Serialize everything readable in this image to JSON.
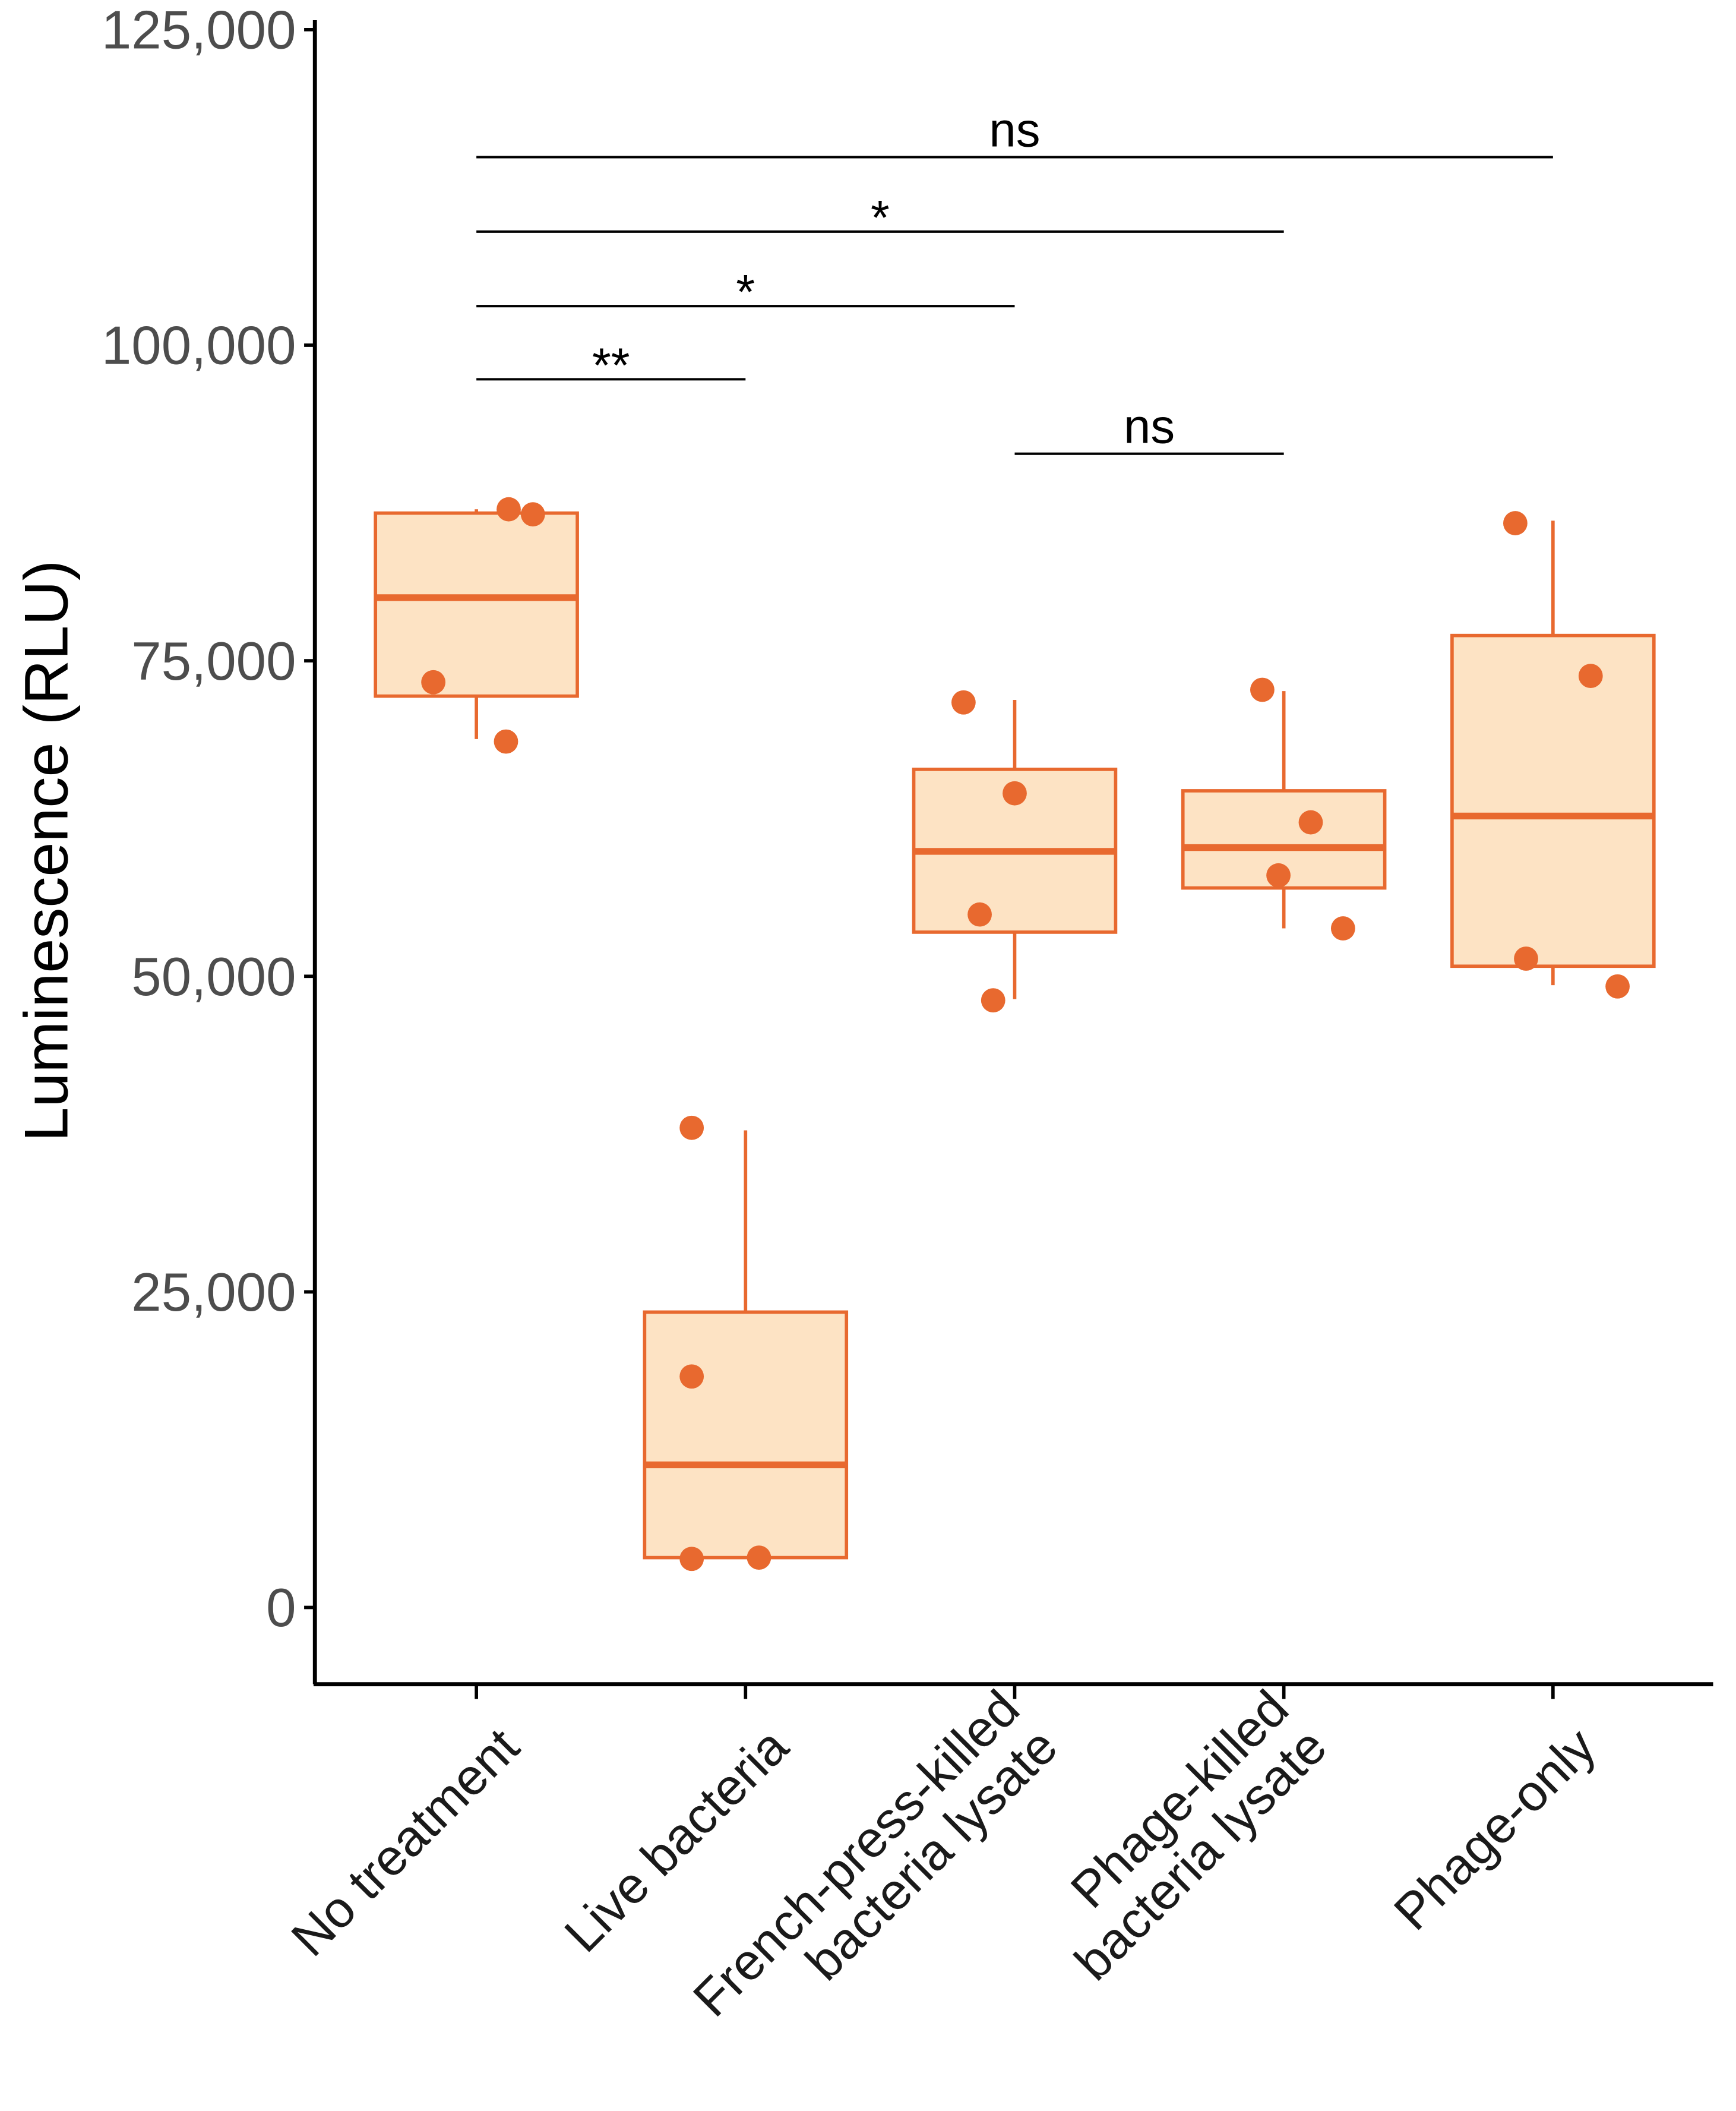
{
  "chart_data": {
    "type": "box",
    "title": "",
    "xlabel": "",
    "ylabel": "Luminescence (RLU)",
    "ylim": [
      -6000,
      126000
    ],
    "yticks": [
      0,
      25000,
      50000,
      75000,
      100000,
      125000
    ],
    "ytick_labels": [
      "0",
      "25,000",
      "50,000",
      "75,000",
      "100,000",
      "125,000"
    ],
    "grid": false,
    "legend": "none",
    "colors": {
      "stroke": "#E8692F",
      "fill": "#FDE3C4",
      "axis": "#000000"
    },
    "categories": [
      [
        "No treatment"
      ],
      [
        "Live bacteria"
      ],
      [
        "French-press-killed",
        "bacteria lysate"
      ],
      [
        "Phage-killed",
        "bacteria lysate"
      ],
      [
        "Phage-only"
      ]
    ],
    "boxes": [
      {
        "q1": 72200,
        "median": 80000,
        "q3": 86700,
        "whisker_low": 68800,
        "whisker_high": 87000,
        "points": [
          87000,
          86600,
          73300,
          68600
        ]
      },
      {
        "q1": 3950,
        "median": 11300,
        "q3": 23400,
        "whisker_low": 3950,
        "whisker_high": 37800,
        "points": [
          38000,
          18300,
          3850,
          3950
        ]
      },
      {
        "q1": 53500,
        "median": 59900,
        "q3": 66400,
        "whisker_low": 48200,
        "whisker_high": 71900,
        "points": [
          71700,
          64500,
          54900,
          48100
        ]
      },
      {
        "q1": 57000,
        "median": 60200,
        "q3": 64700,
        "whisker_low": 53800,
        "whisker_high": 72600,
        "points": [
          72700,
          62200,
          58000,
          53800
        ]
      },
      {
        "q1": 50800,
        "median": 62700,
        "q3": 77000,
        "whisker_low": 49300,
        "whisker_high": 86100,
        "points": [
          85900,
          73800,
          51400,
          49200
        ]
      }
    ],
    "significance": [
      {
        "from": 0,
        "to": 4,
        "y": 114900,
        "label": "ns"
      },
      {
        "from": 0,
        "to": 3,
        "y": 109000,
        "label": "*"
      },
      {
        "from": 0,
        "to": 2,
        "y": 103100,
        "label": "*"
      },
      {
        "from": 0,
        "to": 1,
        "y": 97300,
        "label": "**"
      },
      {
        "from": 2,
        "to": 3,
        "y": 91400,
        "label": "ns"
      }
    ]
  }
}
